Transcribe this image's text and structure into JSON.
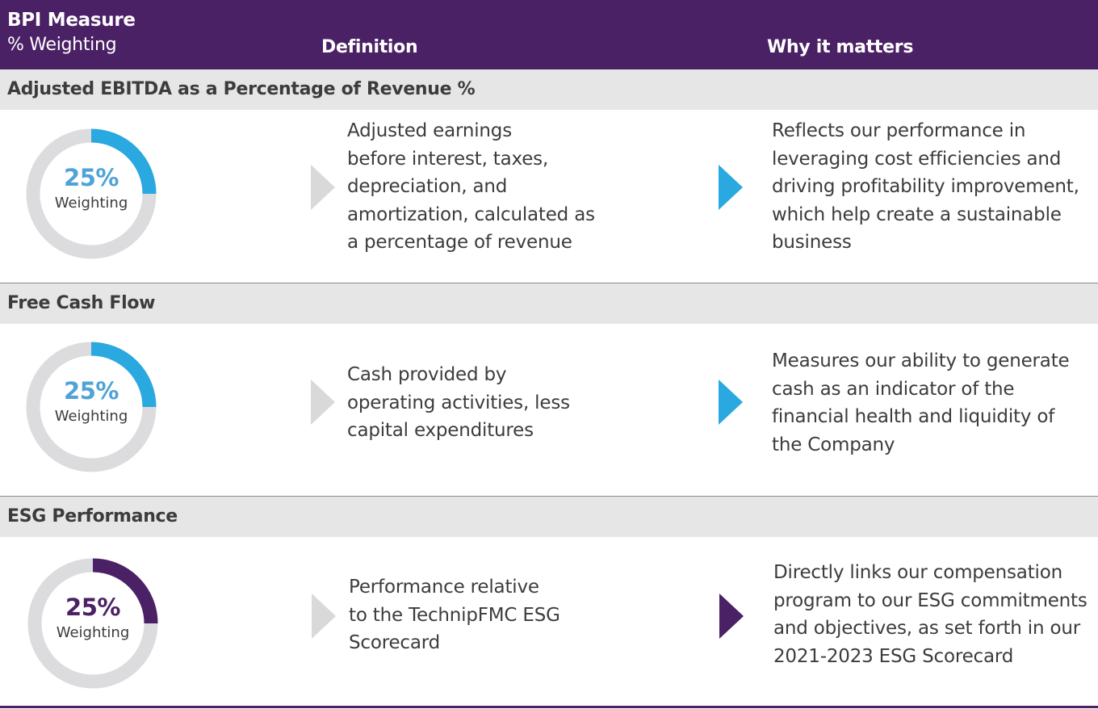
{
  "header": {
    "measure_label": "BPI Measure",
    "weighting_label": "% Weighting",
    "definition_label": "Definition",
    "why_label": "Why it matters",
    "background_color": "#4b2165"
  },
  "rows": [
    {
      "title": "Adjusted EBITDA as a Percentage of Revenue %",
      "percent": "25%",
      "weighting_label": "Weighting",
      "weight_fraction": 0.25,
      "accent_color": "#29a9e0",
      "definition_lines": [
        "Adjusted earnings",
        "before interest, taxes,",
        "depreciation, and",
        "amortization, calculated as",
        "a percentage of revenue"
      ],
      "why_lines": [
        "Reflects our performance in",
        "leveraging cost efficiencies and",
        "driving profitability improvement,",
        "which help create a sustainable",
        "business"
      ]
    },
    {
      "title": "Free Cash Flow",
      "percent": "25%",
      "weighting_label": "Weighting",
      "weight_fraction": 0.25,
      "accent_color": "#29a9e0",
      "definition_lines": [
        "Cash provided by",
        "operating activities, less",
        "capital expenditures"
      ],
      "why_lines": [
        "Measures our ability to generate",
        "cash as an indicator of the",
        "financial health and liquidity of",
        "the Company"
      ]
    },
    {
      "title": "ESG Performance",
      "percent": "25%",
      "weighting_label": "Weighting",
      "weight_fraction": 0.25,
      "accent_color": "#4b2165",
      "definition_lines": [
        "Performance relative",
        "to the TechnipFMC ESG",
        "Scorecard"
      ],
      "why_lines": [
        "Directly links our compensation",
        "program to our ESG commitments",
        "and objectives, as set forth in our",
        "2021-2023 ESG Scorecard"
      ]
    }
  ],
  "colors": {
    "track": "#dcdcde",
    "gray_arrow": "#d9d9da",
    "section_bg": "#e6e6e7",
    "percent_blue_text": "#4fa3d6"
  }
}
